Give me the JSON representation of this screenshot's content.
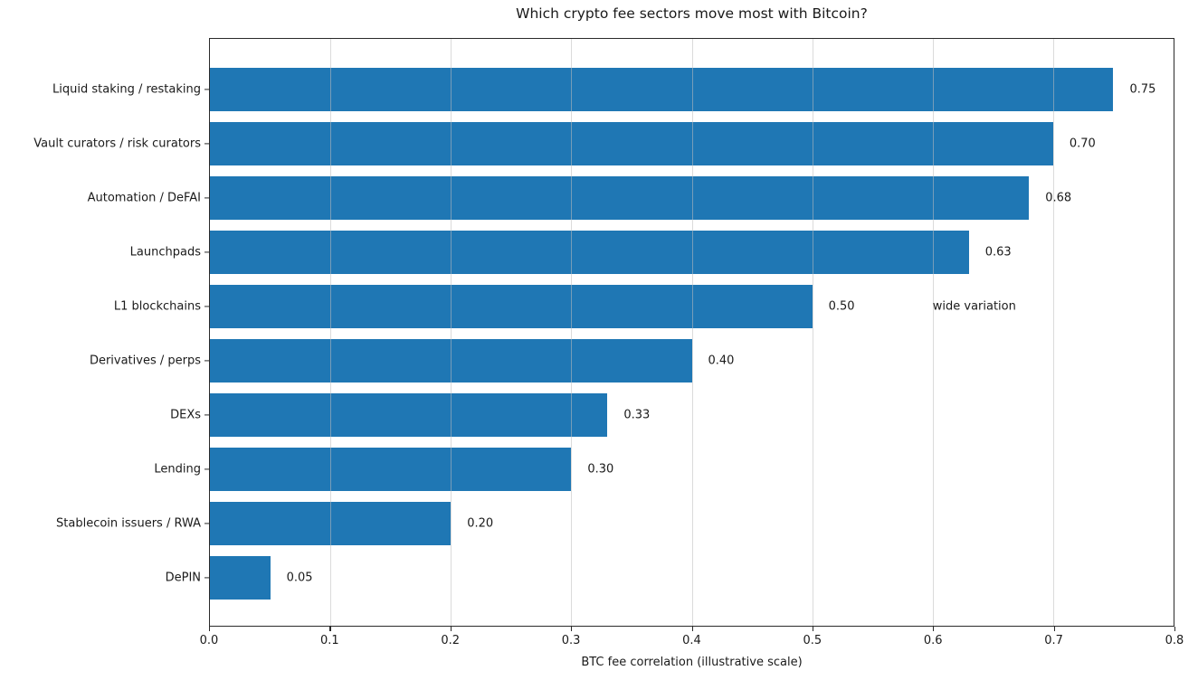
{
  "title": "Which crypto fee sectors move most with Bitcoin?",
  "chart_data": {
    "type": "bar",
    "orientation": "horizontal",
    "title": "Which crypto fee sectors move most with Bitcoin?",
    "xlabel": "BTC fee correlation (illustrative scale)",
    "ylabel": "",
    "xlim": [
      0.0,
      0.8
    ],
    "xticks": [
      "0.0",
      "0.1",
      "0.2",
      "0.3",
      "0.4",
      "0.5",
      "0.6",
      "0.7",
      "0.8"
    ],
    "grid": "faint vertical gridlines at each 0.1",
    "legend_position": "none",
    "bar_color": "#1f77b4",
    "categories": [
      "Liquid staking / restaking",
      "Vault curators / risk curators",
      "Automation / DeFAI",
      "Launchpads",
      "L1 blockchains",
      "Derivatives / perps",
      "DEXs",
      "Lending",
      "Stablecoin issuers / RWA",
      "DePIN"
    ],
    "values": [
      0.75,
      0.7,
      0.68,
      0.63,
      0.5,
      0.4,
      0.33,
      0.3,
      0.2,
      0.05
    ],
    "value_labels": [
      "0.75",
      "0.70",
      "0.68",
      "0.63",
      "0.50",
      "0.40",
      "0.33",
      "0.30",
      "0.20",
      "0.05"
    ],
    "annotations": [
      {
        "text": "wide variation",
        "category": "L1 blockchains",
        "x": 0.6
      }
    ]
  }
}
